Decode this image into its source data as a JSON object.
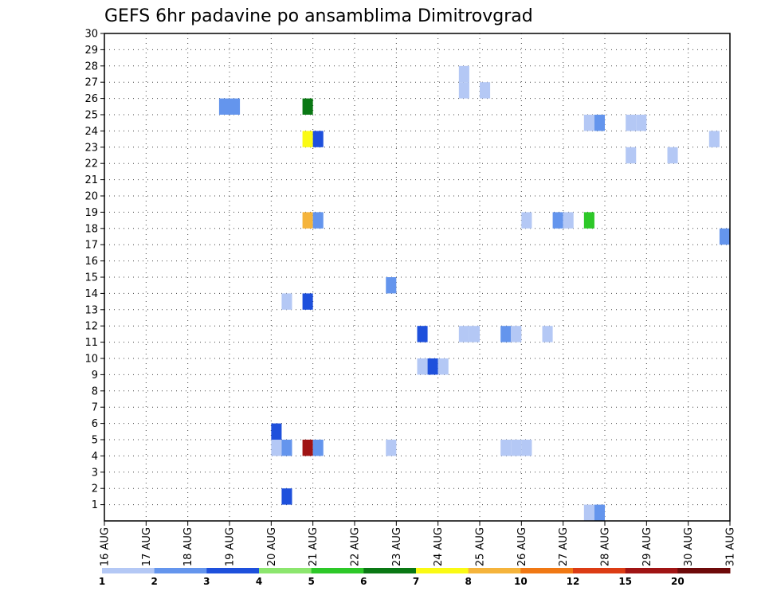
{
  "chart_data": {
    "type": "heatmap",
    "title": "GEFS 6hr padavine po ansamblima Dimitrovgrad",
    "xlabel": "",
    "ylabel": "",
    "x_tick_labels": [
      "16 AUG",
      "17 AUG",
      "18 AUG",
      "19 AUG",
      "20 AUG",
      "21 AUG",
      "22 AUG",
      "23 AUG",
      "24 AUG",
      "25 AUG",
      "26 AUG",
      "27 AUG",
      "28 AUG",
      "29 AUG",
      "30 AUG",
      "31 AUG"
    ],
    "y_ticks": [
      1,
      2,
      3,
      4,
      5,
      6,
      7,
      8,
      9,
      10,
      11,
      12,
      13,
      14,
      15,
      16,
      17,
      18,
      19,
      20,
      21,
      22,
      23,
      24,
      25,
      26,
      27,
      28,
      29,
      30
    ],
    "xlim": [
      0,
      60
    ],
    "ylim": [
      0,
      30
    ],
    "grid": true,
    "colorbar": {
      "boundaries": [
        "1",
        "2",
        "3",
        "4",
        "5",
        "6",
        "7",
        "8",
        "10",
        "12",
        "15",
        "20"
      ],
      "colors": [
        "#b4c8f5",
        "#6495ed",
        "#1e50dc",
        "#8ce66e",
        "#2dc828",
        "#0a7814",
        "#fafa14",
        "#f5b43c",
        "#f07814",
        "#dc3c14",
        "#a01414",
        "#6e0a0a"
      ],
      "placement": "bottom"
    },
    "cells": [
      {
        "t": 18.75,
        "m": 26,
        "v": 2.5
      },
      {
        "t": 19,
        "m": 26,
        "v": 2.5
      },
      {
        "t": 20.75,
        "m": 26,
        "v": 6.5
      },
      {
        "t": 20.75,
        "m": 24,
        "v": 7.5
      },
      {
        "t": 21,
        "m": 24,
        "v": 3.5
      },
      {
        "t": 20.75,
        "m": 19,
        "v": 8.5
      },
      {
        "t": 21,
        "m": 19,
        "v": 2.5
      },
      {
        "t": 20.25,
        "m": 14,
        "v": 1.5
      },
      {
        "t": 20.75,
        "m": 14,
        "v": 3.5
      },
      {
        "t": 20,
        "m": 6,
        "v": 3.5
      },
      {
        "t": 20,
        "m": 5,
        "v": 1.5
      },
      {
        "t": 20.25,
        "m": 5,
        "v": 2.5
      },
      {
        "t": 20.75,
        "m": 5,
        "v": 16
      },
      {
        "t": 21,
        "m": 5,
        "v": 2.5
      },
      {
        "t": 20.25,
        "m": 2,
        "v": 3.5
      },
      {
        "t": 20.75,
        "m": 0,
        "v": 3.5
      },
      {
        "t": 22.75,
        "m": 15,
        "v": 2.5
      },
      {
        "t": 22.75,
        "m": 5,
        "v": 1.5
      },
      {
        "t": 23.5,
        "m": 12,
        "v": 3.5
      },
      {
        "t": 23.5,
        "m": 10,
        "v": 1.5
      },
      {
        "t": 23.75,
        "m": 10,
        "v": 3.5
      },
      {
        "t": 24,
        "m": 10,
        "v": 1.5
      },
      {
        "t": 24.5,
        "m": 28,
        "v": 1.5
      },
      {
        "t": 24.5,
        "m": 27,
        "v": 1.5
      },
      {
        "t": 25,
        "m": 27,
        "v": 1.5
      },
      {
        "t": 24.5,
        "m": 12,
        "v": 1.5
      },
      {
        "t": 24.75,
        "m": 12,
        "v": 1.5
      },
      {
        "t": 25.5,
        "m": 12,
        "v": 2.5
      },
      {
        "t": 25.75,
        "m": 12,
        "v": 1.5
      },
      {
        "t": 25.5,
        "m": 5,
        "v": 1.5
      },
      {
        "t": 25.75,
        "m": 5,
        "v": 1.5
      },
      {
        "t": 26,
        "m": 5,
        "v": 1.5
      },
      {
        "t": 26,
        "m": 19,
        "v": 1.5
      },
      {
        "t": 26.5,
        "m": 12,
        "v": 1.5
      },
      {
        "t": 26.75,
        "m": 19,
        "v": 2.5
      },
      {
        "t": 27,
        "m": 19,
        "v": 1.5
      },
      {
        "t": 27.5,
        "m": 19,
        "v": 5.5
      },
      {
        "t": 27.5,
        "m": 25,
        "v": 1.5
      },
      {
        "t": 27.75,
        "m": 25,
        "v": 2.5
      },
      {
        "t": 27.5,
        "m": 1,
        "v": 1.5
      },
      {
        "t": 27.75,
        "m": 1,
        "v": 2.5
      },
      {
        "t": 28.5,
        "m": 25,
        "v": 1.5
      },
      {
        "t": 28.75,
        "m": 25,
        "v": 1.5
      },
      {
        "t": 28.5,
        "m": 23,
        "v": 1.5
      },
      {
        "t": 29.5,
        "m": 23,
        "v": 1.5
      },
      {
        "t": 30.5,
        "m": 24,
        "v": 1.5
      },
      {
        "t": 30.75,
        "m": 18,
        "v": 2.5
      }
    ]
  }
}
